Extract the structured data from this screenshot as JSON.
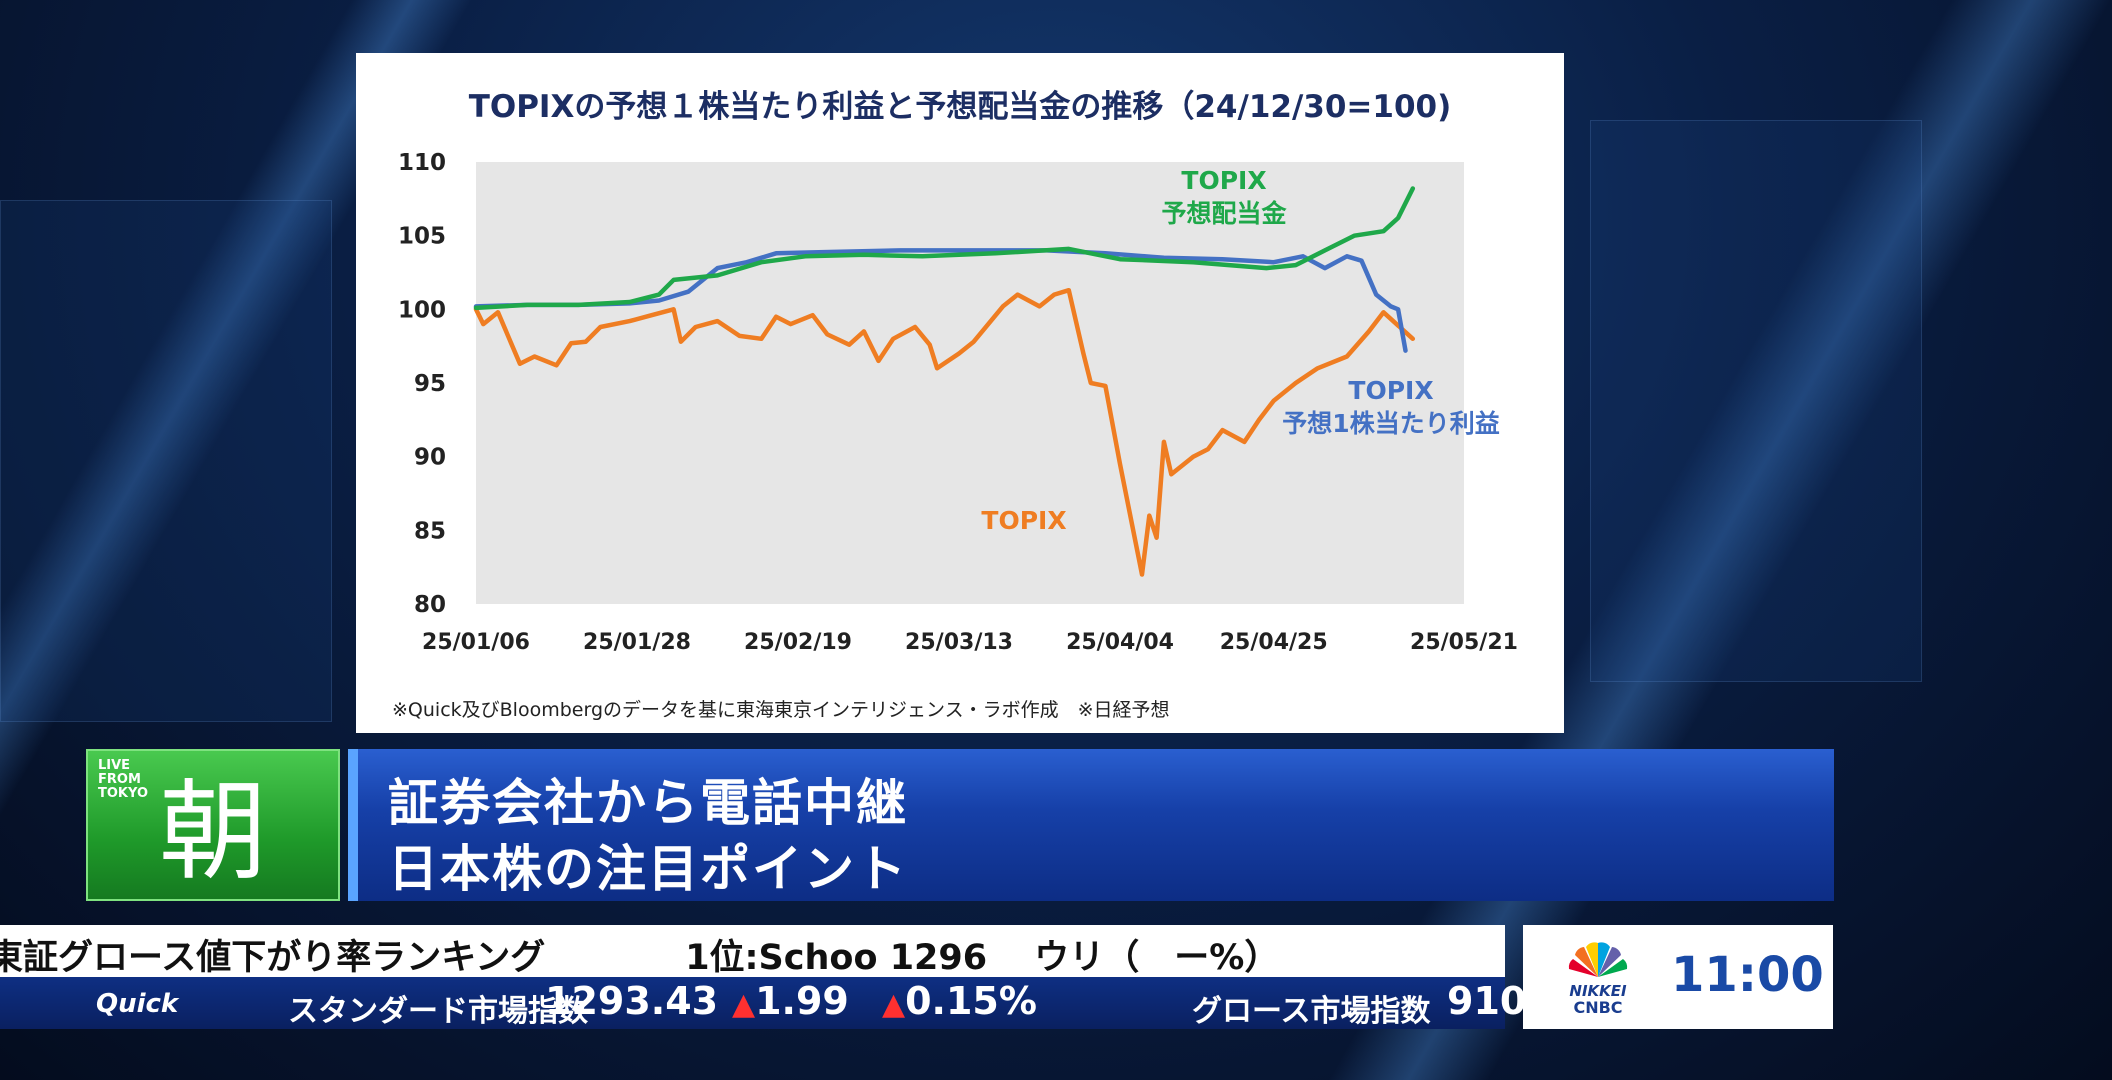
{
  "chart": {
    "title": "TOPIXの予想１株当たり利益と予想配当金の推移（24/12/30=100)",
    "source_note": "※Quick及びBloombergのデータを基に東海東京インテリジェンス・ラボ作成　※日経予想"
  },
  "chart_data": {
    "type": "line",
    "title": "TOPIXの予想１株当たり利益と予想配当金の推移（24/12/30=100)",
    "ylim": [
      80,
      110
    ],
    "yticks": [
      "110",
      "105",
      "100",
      "95",
      "90",
      "85",
      "80"
    ],
    "xticks": [
      "25/01/06",
      "25/01/28",
      "25/02/19",
      "25/03/13",
      "25/04/04",
      "25/04/25",
      "25/05/21"
    ],
    "xlim": [
      "2025-01-06",
      "2025-05-21"
    ],
    "grid": false,
    "series": [
      {
        "name": "TOPIX",
        "color": "#ef7d22",
        "points": [
          [
            "2025-01-06",
            100.0
          ],
          [
            "2025-01-07",
            99.0
          ],
          [
            "2025-01-09",
            99.8
          ],
          [
            "2025-01-12",
            96.3
          ],
          [
            "2025-01-14",
            96.8
          ],
          [
            "2025-01-17",
            96.2
          ],
          [
            "2025-01-19",
            97.7
          ],
          [
            "2025-01-21",
            97.8
          ],
          [
            "2025-01-23",
            98.8
          ],
          [
            "2025-01-27",
            99.2
          ],
          [
            "2025-01-30",
            99.6
          ],
          [
            "2025-02-02",
            100.0
          ],
          [
            "2025-02-03",
            97.8
          ],
          [
            "2025-02-05",
            98.8
          ],
          [
            "2025-02-08",
            99.2
          ],
          [
            "2025-02-11",
            98.2
          ],
          [
            "2025-02-14",
            98.0
          ],
          [
            "2025-02-16",
            99.5
          ],
          [
            "2025-02-18",
            99.0
          ],
          [
            "2025-02-21",
            99.6
          ],
          [
            "2025-02-23",
            98.3
          ],
          [
            "2025-02-26",
            97.6
          ],
          [
            "2025-02-28",
            98.5
          ],
          [
            "2025-03-02",
            96.5
          ],
          [
            "2025-03-04",
            98.0
          ],
          [
            "2025-03-07",
            98.8
          ],
          [
            "2025-03-09",
            97.6
          ],
          [
            "2025-03-10",
            96.0
          ],
          [
            "2025-03-13",
            97.0
          ],
          [
            "2025-03-15",
            97.8
          ],
          [
            "2025-03-19",
            100.2
          ],
          [
            "2025-03-21",
            101.0
          ],
          [
            "2025-03-24",
            100.2
          ],
          [
            "2025-03-26",
            101.0
          ],
          [
            "2025-03-28",
            101.3
          ],
          [
            "2025-03-30",
            97.0
          ],
          [
            "2025-03-31",
            95.0
          ],
          [
            "2025-04-02",
            94.8
          ],
          [
            "2025-04-04",
            89.5
          ],
          [
            "2025-04-07",
            82.0
          ],
          [
            "2025-04-08",
            86.0
          ],
          [
            "2025-04-09",
            84.5
          ],
          [
            "2025-04-10",
            91.0
          ],
          [
            "2025-04-11",
            88.8
          ],
          [
            "2025-04-14",
            90.0
          ],
          [
            "2025-04-16",
            90.5
          ],
          [
            "2025-04-18",
            91.8
          ],
          [
            "2025-04-21",
            91.0
          ],
          [
            "2025-04-23",
            92.5
          ],
          [
            "2025-04-25",
            93.8
          ],
          [
            "2025-04-28",
            95.0
          ],
          [
            "2025-05-01",
            96.0
          ],
          [
            "2025-05-05",
            96.8
          ],
          [
            "2025-05-08",
            98.5
          ],
          [
            "2025-05-10",
            99.8
          ],
          [
            "2025-05-14",
            98.0
          ]
        ]
      },
      {
        "name": "TOPIX\n予想1株当たり利益",
        "color": "#4471c4",
        "points": [
          [
            "2025-01-06",
            100.2
          ],
          [
            "2025-01-13",
            100.3
          ],
          [
            "2025-01-20",
            100.3
          ],
          [
            "2025-01-27",
            100.4
          ],
          [
            "2025-01-31",
            100.6
          ],
          [
            "2025-02-04",
            101.2
          ],
          [
            "2025-02-08",
            102.8
          ],
          [
            "2025-02-12",
            103.2
          ],
          [
            "2025-02-16",
            103.8
          ],
          [
            "2025-02-24",
            103.9
          ],
          [
            "2025-03-05",
            104.0
          ],
          [
            "2025-03-15",
            104.0
          ],
          [
            "2025-03-25",
            104.0
          ],
          [
            "2025-04-02",
            103.8
          ],
          [
            "2025-04-10",
            103.5
          ],
          [
            "2025-04-18",
            103.4
          ],
          [
            "2025-04-25",
            103.2
          ],
          [
            "2025-04-29",
            103.6
          ],
          [
            "2025-05-02",
            102.8
          ],
          [
            "2025-05-05",
            103.6
          ],
          [
            "2025-05-07",
            103.3
          ],
          [
            "2025-05-09",
            101.0
          ],
          [
            "2025-05-11",
            100.2
          ],
          [
            "2025-05-12",
            100.0
          ],
          [
            "2025-05-13",
            97.2
          ]
        ]
      },
      {
        "name": "TOPIX\n予想配当金",
        "color": "#1fa84a",
        "points": [
          [
            "2025-01-06",
            100.1
          ],
          [
            "2025-01-13",
            100.3
          ],
          [
            "2025-01-20",
            100.3
          ],
          [
            "2025-01-27",
            100.5
          ],
          [
            "2025-01-31",
            101.0
          ],
          [
            "2025-02-02",
            102.0
          ],
          [
            "2025-02-08",
            102.3
          ],
          [
            "2025-02-14",
            103.2
          ],
          [
            "2025-02-20",
            103.6
          ],
          [
            "2025-02-28",
            103.7
          ],
          [
            "2025-03-08",
            103.6
          ],
          [
            "2025-03-18",
            103.8
          ],
          [
            "2025-03-28",
            104.1
          ],
          [
            "2025-04-04",
            103.4
          ],
          [
            "2025-04-14",
            103.2
          ],
          [
            "2025-04-24",
            102.8
          ],
          [
            "2025-04-28",
            103.0
          ],
          [
            "2025-05-02",
            104.0
          ],
          [
            "2025-05-06",
            105.0
          ],
          [
            "2025-05-10",
            105.3
          ],
          [
            "2025-05-12",
            106.2
          ],
          [
            "2025-05-14",
            108.2
          ]
        ]
      }
    ],
    "annotations": [
      {
        "text": "TOPIX\n予想配当金",
        "color": "#1fa84a"
      },
      {
        "text": "TOPIX\n予想1株当たり利益",
        "color": "#4471c4"
      },
      {
        "text": "TOPIX",
        "color": "#ef7d22"
      }
    ]
  },
  "live_box": {
    "live_text": "LIVE\nFROM\nTOKYO",
    "kanji": "朝"
  },
  "headline": {
    "line1": "証券会社から電話中継",
    "line2": "日本株の注目ポイント"
  },
  "ticker_top": {
    "text": "東証グロース値下がり率ランキング　　　　1位:Schoo 1296　 ウリ（　ー%）"
  },
  "ticker_bottom": {
    "brand": "Quick",
    "index1_label": "スタンダード市場指数",
    "index1_value": "1293.43",
    "index1_change": "▲1.99",
    "index1_pct": "▲0.15%",
    "index2_label": "グロース市場指数",
    "index2_value": "910"
  },
  "clock": {
    "time": "11:00",
    "logo_text_1": "NIKKEI",
    "logo_text_2": "CNBC"
  }
}
